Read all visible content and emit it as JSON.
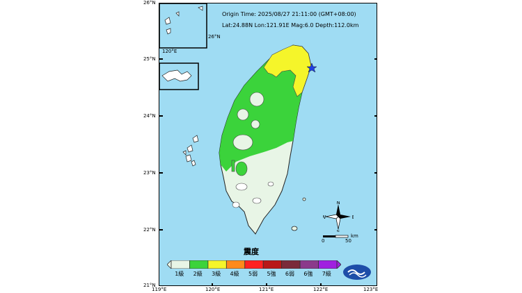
{
  "header": {
    "origin_time": "Origin Time:  2025/08/27  21:11:00  (GMT+08:00)",
    "location": "Lat:24.88N  Lon:121.91E  Mag:6.0  Depth:112.0km"
  },
  "lat_labels": [
    "26°N",
    "25°N",
    "24°N",
    "23°N",
    "22°N",
    "21°N"
  ],
  "lon_labels": [
    "119°E",
    "120°E",
    "121°E",
    "122°E",
    "123°E"
  ],
  "inset": {
    "lat_label": "26°N",
    "lon_label": "120°E"
  },
  "legend": {
    "title": "震度",
    "levels": [
      {
        "label": "1級",
        "color": "#e8f5e6"
      },
      {
        "label": "2級",
        "color": "#3bd33b"
      },
      {
        "label": "3級",
        "color": "#f5f52a"
      },
      {
        "label": "4級",
        "color": "#ff8a1c"
      },
      {
        "label": "5弱",
        "color": "#ff2222"
      },
      {
        "label": "5強",
        "color": "#b81818"
      },
      {
        "label": "6弱",
        "color": "#7a2a3a"
      },
      {
        "label": "6強",
        "color": "#8b3a8b"
      },
      {
        "label": "7級",
        "color": "#a020e0"
      }
    ]
  },
  "compass": {
    "n": "N",
    "s": "S",
    "e": "E",
    "w": "W"
  },
  "scale": {
    "start": "0",
    "end": "50",
    "unit": "km"
  },
  "epicenter": {
    "lat": 24.88,
    "lon": 121.91
  }
}
